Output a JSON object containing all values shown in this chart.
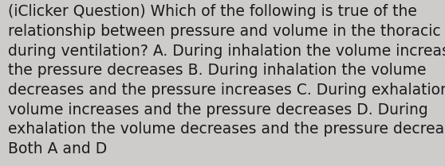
{
  "lines": [
    "(iClicker Question) Which of the following is true of the",
    "relationship between pressure and volume in the thoracic cavity",
    "during ventilation? A. During inhalation the volume increases and",
    "the pressure decreases B. During inhalation the volume",
    "decreases and the pressure increases C. During exhalation the",
    "volume increases and the pressure decreases D. During",
    "exhalation the volume decreases and the pressure decreases E.",
    "Both A and D"
  ],
  "background_color": "#ceccca",
  "text_color": "#1a1a1a",
  "font_size": 13.5,
  "fig_width": 5.58,
  "fig_height": 2.09,
  "linespacing": 1.38
}
